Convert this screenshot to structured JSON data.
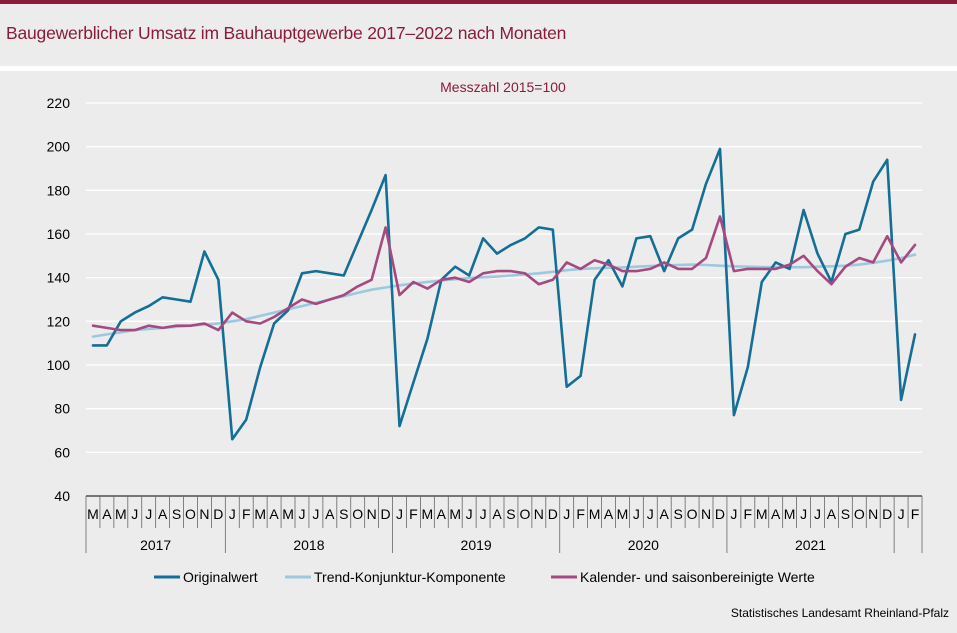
{
  "header": {
    "title": "Baugewerblicher Umsatz im Bauhauptgewerbe 2017–2022 nach Monaten"
  },
  "colors": {
    "accent": "#8a1c3b",
    "original": "#146e96",
    "trend": "#9ec8e0",
    "adjusted": "#a44a80"
  },
  "footer": {
    "source": "Statistisches Landesamt Rheinland-Pfalz"
  },
  "chart_data": {
    "type": "line",
    "title": "",
    "subtitle": "Messzahl 2015=100",
    "xlabel": "",
    "ylabel": "",
    "ylim": [
      40,
      220
    ],
    "yticks": [
      40,
      60,
      80,
      100,
      120,
      140,
      160,
      180,
      200,
      220
    ],
    "grid": true,
    "legend": "bottom",
    "categories": [
      "M",
      "A",
      "M",
      "J",
      "J",
      "A",
      "S",
      "O",
      "N",
      "D",
      "J",
      "F",
      "M",
      "A",
      "M",
      "J",
      "J",
      "A",
      "S",
      "O",
      "N",
      "D",
      "J",
      "F",
      "M",
      "A",
      "M",
      "J",
      "J",
      "A",
      "S",
      "O",
      "N",
      "D",
      "J",
      "F",
      "M",
      "A",
      "M",
      "J",
      "J",
      "A",
      "S",
      "O",
      "N",
      "D",
      "J",
      "F",
      "M",
      "A",
      "M",
      "J",
      "J",
      "A",
      "S",
      "O",
      "N",
      "D",
      "J",
      "F"
    ],
    "years": [
      {
        "label": "2017",
        "start": 0,
        "end": 9
      },
      {
        "label": "2018",
        "start": 10,
        "end": 21
      },
      {
        "label": "2019",
        "start": 22,
        "end": 33
      },
      {
        "label": "2020",
        "start": 34,
        "end": 45
      },
      {
        "label": "2021",
        "start": 46,
        "end": 57
      }
    ],
    "series": [
      {
        "name": "Originalwert",
        "color": "#146e96",
        "values": [
          109,
          109,
          120,
          124,
          127,
          131,
          130,
          129,
          152,
          139,
          66,
          75,
          99,
          119,
          125,
          142,
          143,
          142,
          141,
          156,
          171,
          187,
          72,
          92,
          112,
          139,
          145,
          141,
          158,
          151,
          155,
          158,
          163,
          162,
          90,
          95,
          139,
          148,
          136,
          158,
          159,
          143,
          158,
          162,
          183,
          199,
          77,
          99,
          138,
          147,
          144,
          171,
          151,
          138,
          160,
          162,
          184,
          194,
          84,
          114
        ]
      },
      {
        "name": "Trend-Konjunktur-Komponente",
        "color": "#9ec8e0",
        "values": [
          113,
          114,
          115,
          116,
          116.5,
          117,
          117.5,
          118,
          118.5,
          119,
          120,
          121,
          122.5,
          124,
          125.5,
          127,
          128.5,
          130,
          131.5,
          133,
          134.5,
          135.5,
          136.5,
          137.3,
          138,
          138.7,
          139.3,
          139.8,
          140.2,
          140.5,
          141,
          141.5,
          142,
          142.7,
          143.4,
          144,
          144.3,
          144.5,
          144.7,
          145,
          145.3,
          145.6,
          145.8,
          146,
          145.8,
          145.5,
          145.2,
          145,
          144.9,
          144.8,
          144.8,
          144.8,
          145,
          145.2,
          145.5,
          146,
          146.8,
          147.8,
          149,
          150.5
        ]
      },
      {
        "name": "Kalender- und saisonbereinigte Werte",
        "color": "#a44a80",
        "values": [
          118,
          117,
          116,
          116,
          118,
          117,
          118,
          118,
          119,
          116,
          124,
          120,
          119,
          122,
          126,
          130,
          128,
          130,
          132,
          136,
          139,
          163,
          132,
          138,
          135,
          139,
          140,
          138,
          142,
          143,
          143,
          142,
          137,
          139,
          147,
          144,
          148,
          146,
          143,
          143,
          144,
          147,
          144,
          144,
          149,
          168,
          143,
          144,
          144,
          144,
          146,
          150,
          143,
          137,
          145,
          149,
          147,
          159,
          147,
          155
        ]
      }
    ]
  }
}
